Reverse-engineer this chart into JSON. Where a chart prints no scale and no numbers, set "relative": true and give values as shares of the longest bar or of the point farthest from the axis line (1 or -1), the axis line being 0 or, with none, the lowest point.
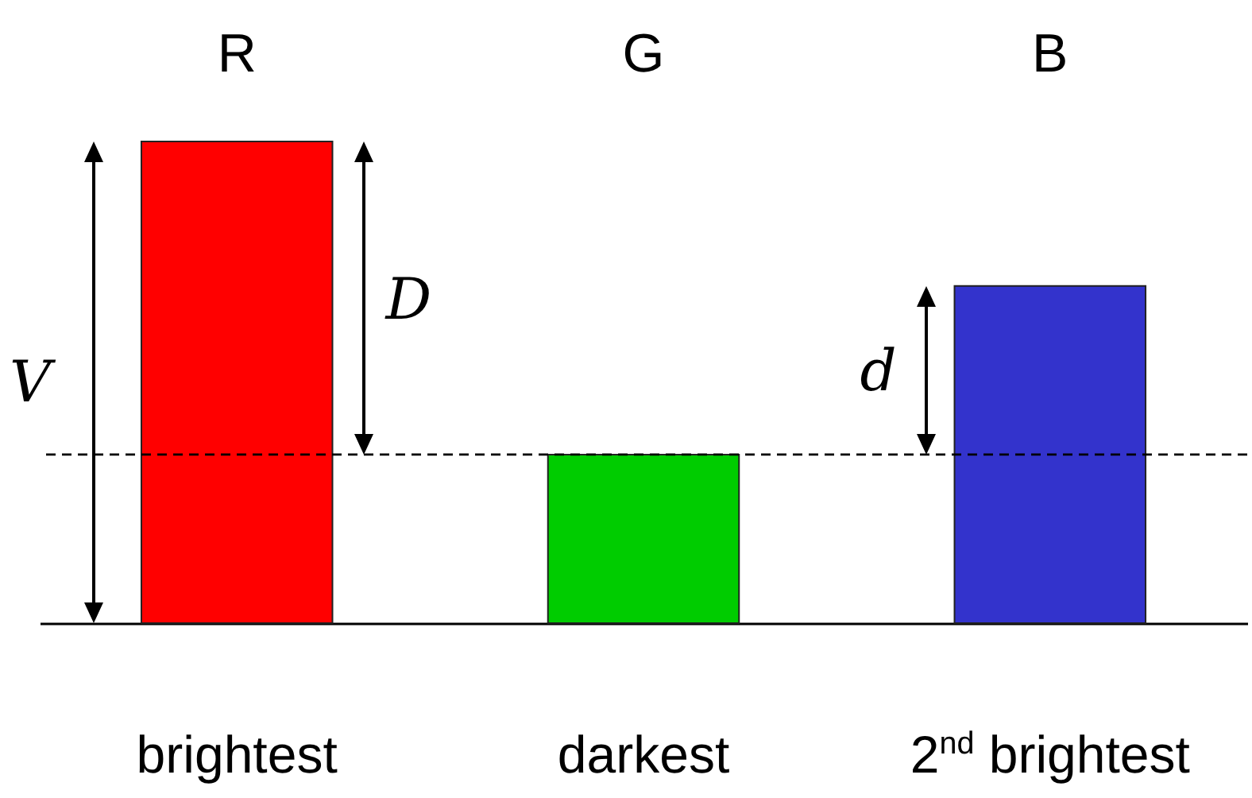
{
  "chart_data": {
    "type": "bar",
    "relative": true,
    "categories": [
      "R",
      "G",
      "B"
    ],
    "values": [
      1,
      0.35,
      0.7
    ],
    "colors": [
      "#ff0000",
      "#00cc00",
      "#3333cc"
    ],
    "ref_lines": [
      {
        "axis": "y",
        "value": 0.35,
        "line_style": "dashed"
      }
    ],
    "annotations": [
      "V",
      "D",
      "d",
      "brightest",
      "darkest",
      "2$^{nd}$ brightest"
    ]
  }
}
